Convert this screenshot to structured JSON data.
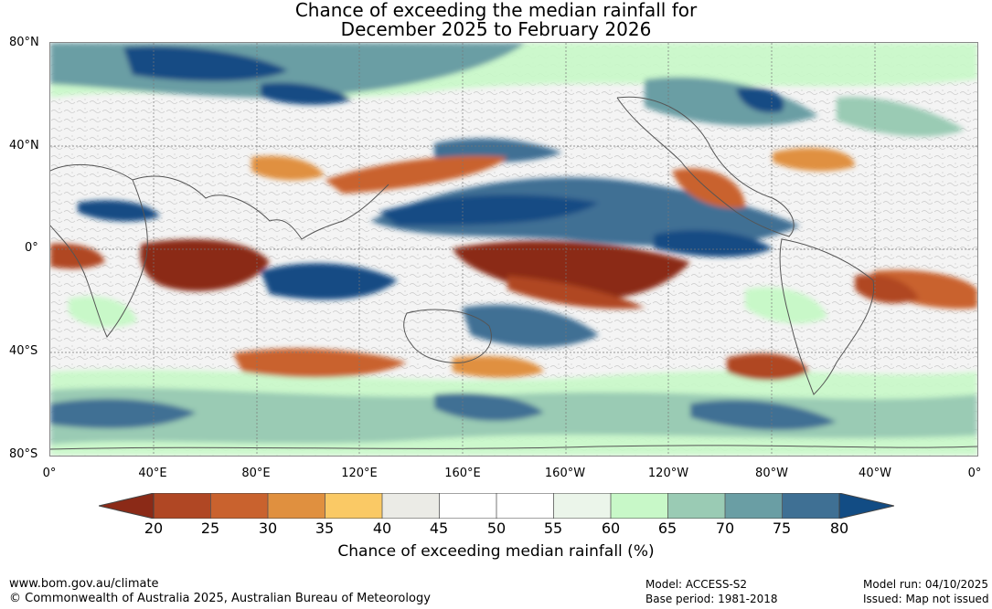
{
  "title": {
    "line1": "Chance of exceeding the median rainfall for",
    "line2": "December 2025 to February 2026"
  },
  "map": {
    "lat_labels": [
      "80°N",
      "40°N",
      "0°",
      "40°S",
      "80°S"
    ],
    "lon_labels": [
      "0°",
      "40°E",
      "80°E",
      "120°E",
      "160°E",
      "160°W",
      "120°W",
      "80°W",
      "40°W",
      "0°"
    ]
  },
  "legend": {
    "ticks": [
      "20",
      "25",
      "30",
      "35",
      "40",
      "45",
      "50",
      "55",
      "60",
      "65",
      "70",
      "75",
      "80"
    ],
    "colors": [
      "#8b2a17",
      "#b04724",
      "#c9622e",
      "#e0903f",
      "#fac965",
      "#ebebe6",
      "#ffffff",
      "#ffffff",
      "#ebf5ea",
      "#c8f8c8",
      "#9acbb4",
      "#6a9ea4",
      "#3f7094",
      "#124c84"
    ],
    "label": "Chance of exceeding median rainfall (%)"
  },
  "footer": {
    "website": "www.bom.gov.au/climate",
    "copyright": "© Commonwealth of Australia 2025, Australian Bureau of Meteorology",
    "model": "Model: ACCESS-S2",
    "base_period": "Base period: 1981-2018",
    "model_run": "Model run: 04/10/2025",
    "issued": "Issued: Map not issued"
  }
}
